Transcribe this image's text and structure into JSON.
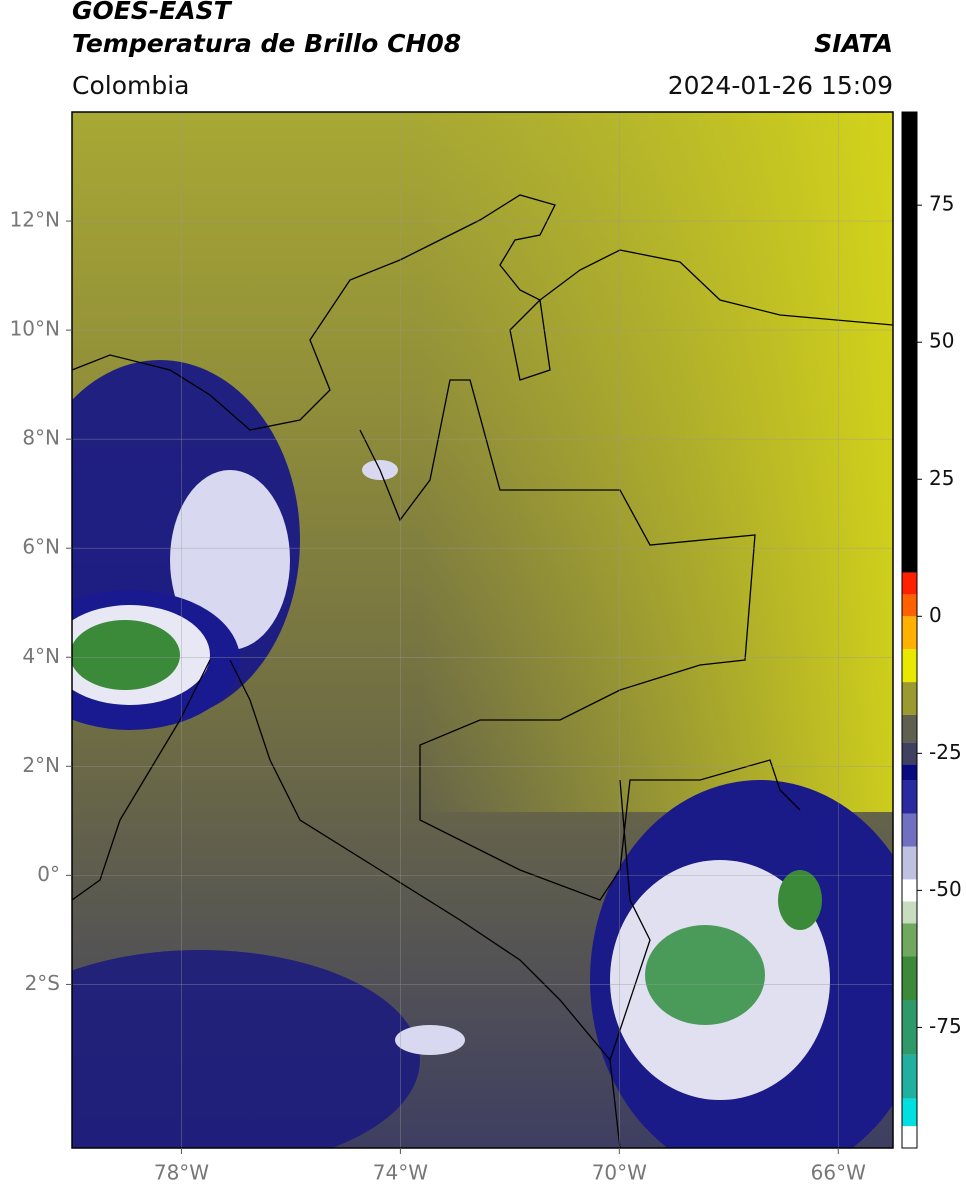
{
  "header": {
    "title": "GOES-EAST",
    "subtitle": "Temperatura de Brillo CH08",
    "region": "Colombia",
    "source": "SIATA",
    "timestamp": "2024-01-26 15:09"
  },
  "map": {
    "xlim": [
      -80,
      -65
    ],
    "ylim": [
      -5,
      14
    ],
    "grid": true,
    "xticks": [
      {
        "value": -78,
        "label": "78°W"
      },
      {
        "value": -74,
        "label": "74°W"
      },
      {
        "value": -70,
        "label": "70°W"
      },
      {
        "value": -66,
        "label": "66°W"
      }
    ],
    "yticks": [
      {
        "value": 12,
        "label": "12°N"
      },
      {
        "value": 10,
        "label": "10°N"
      },
      {
        "value": 8,
        "label": "8°N"
      },
      {
        "value": 6,
        "label": "6°N"
      },
      {
        "value": 4,
        "label": "4°N"
      },
      {
        "value": 2,
        "label": "2°N"
      },
      {
        "value": 0,
        "label": "0°"
      },
      {
        "value": -2,
        "label": "2°S"
      }
    ]
  },
  "colorbar": {
    "lim": [
      -97,
      92
    ],
    "ticks": [
      75,
      50,
      25,
      0,
      -25,
      -50,
      -75
    ],
    "segments": [
      {
        "from": -97,
        "color": "#ffffff"
      },
      {
        "from": -93,
        "color": "#00e0e0"
      },
      {
        "from": -88,
        "color": "#20b0a0"
      },
      {
        "from": -80,
        "color": "#2e9a6a"
      },
      {
        "from": -70,
        "color": "#3a8a3a"
      },
      {
        "from": -62,
        "color": "#70a860"
      },
      {
        "from": -56,
        "color": "#c8dcc0"
      },
      {
        "from": -52,
        "color": "#ffffff"
      },
      {
        "from": -48,
        "color": "#c0c0e0"
      },
      {
        "from": -42,
        "color": "#7070c0"
      },
      {
        "from": -36,
        "color": "#2a2aa0"
      },
      {
        "from": -30,
        "color": "#0a0a80"
      },
      {
        "from": -27,
        "color": "#404060"
      },
      {
        "from": -23,
        "color": "#606050"
      },
      {
        "from": -18,
        "color": "#9a9a30"
      },
      {
        "from": -12,
        "color": "#e8e800"
      },
      {
        "from": -6,
        "color": "#ffb000"
      },
      {
        "from": 0,
        "color": "#ff6000"
      },
      {
        "from": 4,
        "color": "#ff2000"
      },
      {
        "from": 8,
        "color": "#000000"
      }
    ]
  }
}
